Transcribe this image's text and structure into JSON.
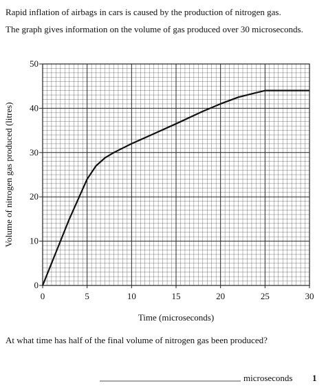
{
  "intro": "Rapid inflation of airbags in cars is caused by the production of nitrogen gas.",
  "description": "The graph gives information on the volume of gas produced over 30 microseconds.",
  "chart_data": {
    "type": "line",
    "xlabel": "Time (microseconds)",
    "ylabel": "Volume of nitrogen gas produced (litres)",
    "x": [
      0,
      1,
      2,
      3,
      4,
      5,
      6,
      7,
      8,
      10,
      12,
      15,
      18,
      20,
      22,
      24,
      25,
      26,
      30
    ],
    "values": [
      0,
      5,
      10,
      15,
      19.5,
      24,
      27,
      28.8,
      30,
      32,
      33.8,
      36.5,
      39.3,
      41,
      42.5,
      43.5,
      44,
      44,
      44
    ],
    "color": "#111111",
    "xlim": [
      0,
      30
    ],
    "xticks": [
      0,
      5,
      10,
      15,
      20,
      25,
      30
    ],
    "ylim": [
      0,
      50
    ],
    "yticks": [
      0,
      10,
      20,
      30,
      40,
      50
    ],
    "grid": true
  },
  "question": "At what time has half of the final volume of nitrogen gas been produced?",
  "answer_unit": "microseconds",
  "marks": "1"
}
